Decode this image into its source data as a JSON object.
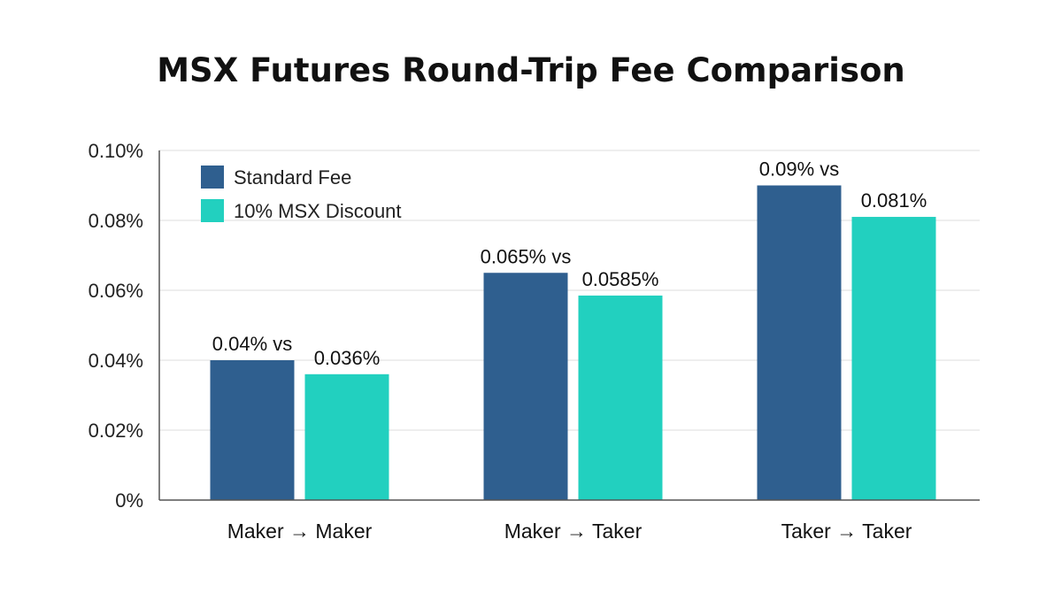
{
  "chart_data": {
    "type": "bar",
    "title": "MSX Futures Round-Trip Fee Comparison",
    "xlabel": "",
    "ylabel": "",
    "categories": [
      "Maker → Maker",
      "Maker → Taker",
      "Taker → Taker"
    ],
    "series": [
      {
        "name": "Standard Fee",
        "values": [
          0.04,
          0.065,
          0.09
        ],
        "color": "#2f5f8f"
      },
      {
        "name": "10% MSX Discount",
        "values": [
          0.036,
          0.0585,
          0.081
        ],
        "color": "#22d0bf"
      }
    ],
    "data_labels": [
      [
        "0.04% vs",
        "0.036%"
      ],
      [
        "0.065% vs",
        "0.0585%"
      ],
      [
        "0.09% vs",
        "0.081%"
      ]
    ],
    "ylim": [
      0,
      0.1
    ],
    "yticks": [
      0,
      0.02,
      0.04,
      0.06,
      0.08,
      0.1
    ],
    "ytick_labels": [
      "0%",
      "0.02%",
      "0.04%",
      "0.06%",
      "0.08%",
      "0.10%"
    ],
    "grid": true,
    "legend_position": "top-left",
    "colors": {
      "grid": "#dddddd",
      "axis": "#555555"
    }
  }
}
